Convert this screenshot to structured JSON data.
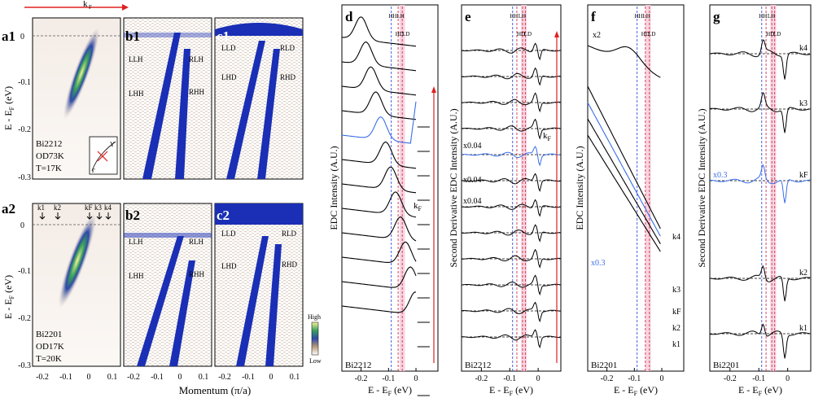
{
  "figure": {
    "kf_arrow_label": "k",
    "kf_arrow_sub": "F",
    "momentum_label": "Momentum (π/a)",
    "colorbar": {
      "high": "High",
      "low": "Low"
    }
  },
  "panels": {
    "a1": {
      "label": "a1",
      "sample": [
        "Bi2212",
        "OD73K",
        "T=17K"
      ],
      "ylabel": "E - E",
      "ylabel_sub": "F",
      "ylabel_unit": " (eV)",
      "yticks": [
        "0",
        "-0.1",
        "-0.2",
        "-0.3"
      ],
      "inset": {
        "y": "Y",
        "g": "Γ"
      }
    },
    "a2": {
      "label": "a2",
      "sample": [
        "Bi2201",
        "OD17K",
        "T=20K"
      ],
      "ylabel": "E - E",
      "ylabel_sub": "F",
      "ylabel_unit": " (eV)",
      "yticks": [
        "0",
        "-0.1",
        "-0.2",
        "-0.3"
      ],
      "xticks": [
        "-0.2",
        "-0.1",
        "0",
        "0.1"
      ],
      "k_markers": [
        "k1",
        "k2",
        "kF",
        "k3",
        "k4"
      ]
    },
    "b1": {
      "label": "b1",
      "bands": [
        "LLH",
        "LHH",
        "RLH",
        "RHH"
      ]
    },
    "b2": {
      "label": "b2",
      "bands": [
        "LLH",
        "LHH",
        "RLH",
        "RHH"
      ],
      "xticks": [
        "-0.2",
        "-0.1",
        "0",
        "0.1"
      ]
    },
    "c1": {
      "label": "c1",
      "bands": [
        "LLD",
        "LHD",
        "RLD",
        "RHD"
      ]
    },
    "c2": {
      "label": "c2",
      "bands": [
        "LLD",
        "LHD",
        "RLD",
        "RHD"
      ],
      "xticks": [
        "-0.2",
        "-0.1",
        "0",
        "0.1"
      ]
    },
    "d": {
      "label": "d",
      "ylabel": "EDC Intensity (A.U.)",
      "sample": "Bi2212",
      "kf": "k",
      "kf_sub": "F",
      "top_labels": [
        "HH",
        "LH",
        "HD",
        "LD"
      ],
      "xlabel": "E - E",
      "xlabel_sub": "F",
      "xlabel_unit": " (eV)",
      "xticks": [
        "-0.2",
        "-0.1",
        "0"
      ]
    },
    "e": {
      "label": "e",
      "ylabel": "Second Derivative EDC Intensity (A.U.)",
      "sample": "Bi2212",
      "kf": "k",
      "kf_sub": "F",
      "scales": [
        "x0.04",
        "x0.04",
        "x0.04"
      ],
      "top_labels": [
        "HH",
        "LH",
        "HD",
        "LD"
      ],
      "xlabel": "E - E",
      "xlabel_sub": "F",
      "xlabel_unit": " (eV)",
      "xticks": [
        "-0.2",
        "-0.1",
        "0"
      ]
    },
    "f": {
      "label": "f",
      "ylabel": "EDC Intensity (A.U.)",
      "sample": "Bi2201",
      "scale_top": "x2",
      "scale_blue": "x0.3",
      "k_labels": [
        "k4",
        "k3",
        "kF",
        "k2",
        "k1"
      ],
      "top_labels": [
        "HH",
        "LH",
        "HD",
        "LD"
      ],
      "xlabel": "E - E",
      "xlabel_sub": "F",
      "xlabel_unit": " (eV)",
      "xticks": [
        "-0.2",
        "-0.1",
        "0"
      ]
    },
    "g": {
      "label": "g",
      "ylabel": "Second Derivative EDC Intensity (A.U.)",
      "sample": "Bi2201",
      "scale_blue": "x0.3",
      "k_labels": [
        "k4",
        "k3",
        "kF",
        "k2",
        "k1"
      ],
      "top_labels": [
        "HH",
        "LH",
        "HD",
        "LD"
      ],
      "xlabel": "E - E",
      "xlabel_sub": "F",
      "xlabel_unit": " (eV)",
      "xticks": [
        "-0.2",
        "-0.1",
        "0"
      ]
    }
  },
  "colors": {
    "blue_curve": "#3a6ee8",
    "band_fill": "#1a2fb5",
    "red_arrow": "#e02020",
    "pink_band": "#f6c9d8",
    "black": "#000000"
  },
  "chart_data": [
    {
      "type": "heatmap",
      "panel": "a1",
      "xlabel": "",
      "ylabel": "E - EF (eV)",
      "ylim": [
        -0.3,
        0.02
      ],
      "xlim": [
        -0.25,
        0.12
      ]
    },
    {
      "type": "heatmap",
      "panel": "a2",
      "xlabel": "Momentum (π/a)",
      "ylabel": "E - EF (eV)",
      "ylim": [
        -0.3,
        0.02
      ],
      "xlim": [
        -0.25,
        0.12
      ]
    },
    {
      "type": "heatmap",
      "panel": "b1",
      "xlim": [
        -0.25,
        0.12
      ]
    },
    {
      "type": "heatmap",
      "panel": "b2",
      "xlim": [
        -0.25,
        0.12
      ]
    },
    {
      "type": "heatmap",
      "panel": "c1",
      "xlim": [
        -0.25,
        0.12
      ]
    },
    {
      "type": "heatmap",
      "panel": "c2",
      "xlim": [
        -0.25,
        0.12
      ]
    },
    {
      "type": "line",
      "panel": "d",
      "xlabel": "E - EF (eV)",
      "ylabel": "EDC Intensity (A.U.)",
      "xlim": [
        -0.27,
        0.08
      ],
      "vlines": [
        -0.09,
        -0.065,
        -0.05
      ],
      "n_curves": 12
    },
    {
      "type": "line",
      "panel": "e",
      "xlabel": "E - EF (eV)",
      "ylabel": "Second Derivative EDC Intensity (A.U.)",
      "xlim": [
        -0.27,
        0.08
      ],
      "vlines": [
        -0.09,
        -0.075,
        -0.055,
        -0.045
      ],
      "n_curves": 12
    },
    {
      "type": "line",
      "panel": "f",
      "xlabel": "E - EF (eV)",
      "ylabel": "EDC Intensity (A.U.)",
      "xlim": [
        -0.27,
        0.08
      ],
      "vlines": [
        -0.09,
        -0.06,
        -0.045
      ]
    },
    {
      "type": "line",
      "panel": "g",
      "xlabel": "E - EF (eV)",
      "ylabel": "Second Derivative EDC Intensity (A.U.)",
      "xlim": [
        -0.27,
        0.08
      ],
      "vlines": [
        -0.09,
        -0.075,
        -0.055,
        -0.045
      ]
    }
  ]
}
